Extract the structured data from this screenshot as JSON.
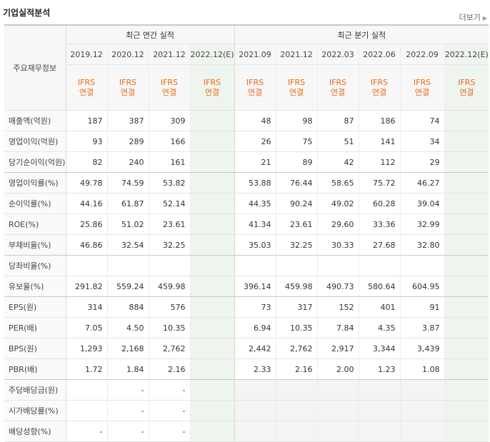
{
  "header": {
    "title": "기업실적분석",
    "more_label": "더보기"
  },
  "table": {
    "corner_label": "주요재무정보",
    "annual_group_label": "최근 연간 실적",
    "quarter_group_label": "최근 분기 실적",
    "periods": [
      "2019.12",
      "2020.12",
      "2021.12",
      "2022.12(E)",
      "2021.09",
      "2021.12",
      "2022.03",
      "2022.06",
      "2022.09",
      "2022.12(E)"
    ],
    "ifrs_top": "IFRS",
    "ifrs_bottom": "연결",
    "rows": [
      {
        "label": "매출액(억원)",
        "values": [
          "187",
          "387",
          "309",
          "",
          "48",
          "98",
          "87",
          "186",
          "74",
          ""
        ]
      },
      {
        "label": "영업이익(억원)",
        "values": [
          "93",
          "289",
          "166",
          "",
          "26",
          "75",
          "51",
          "141",
          "34",
          ""
        ]
      },
      {
        "label": "당기순이익(억원)",
        "values": [
          "82",
          "240",
          "161",
          "",
          "21",
          "89",
          "42",
          "112",
          "29",
          ""
        ]
      },
      {
        "label": "영업이익률(%)",
        "values": [
          "49.78",
          "74.59",
          "53.82",
          "",
          "53.88",
          "76.44",
          "58.65",
          "75.72",
          "46.27",
          ""
        ]
      },
      {
        "label": "순이익률(%)",
        "values": [
          "44.16",
          "61.87",
          "52.14",
          "",
          "44.35",
          "90.24",
          "49.02",
          "60.28",
          "39.04",
          ""
        ]
      },
      {
        "label": "ROE(%)",
        "values": [
          "25.86",
          "51.02",
          "23.61",
          "",
          "41.34",
          "23.61",
          "29.60",
          "33.36",
          "32.99",
          ""
        ]
      },
      {
        "label": "부채비율(%)",
        "values": [
          "46.86",
          "32.54",
          "32.25",
          "",
          "35.03",
          "32.25",
          "30.33",
          "27.68",
          "32.80",
          ""
        ]
      },
      {
        "label": "당좌비율(%)",
        "values": [
          "",
          "",
          "",
          "",
          "",
          "",
          "",
          "",
          "",
          ""
        ]
      },
      {
        "label": "유보율(%)",
        "values": [
          "291.82",
          "559.24",
          "459.98",
          "",
          "396.14",
          "459.98",
          "490.73",
          "580.64",
          "604.95",
          ""
        ]
      },
      {
        "label": "EPS(원)",
        "values": [
          "314",
          "884",
          "576",
          "",
          "73",
          "317",
          "152",
          "401",
          "91",
          ""
        ]
      },
      {
        "label": "PER(배)",
        "values": [
          "7.05",
          "4.50",
          "10.35",
          "",
          "6.94",
          "10.35",
          "7.84",
          "4.35",
          "3.87",
          ""
        ]
      },
      {
        "label": "BPS(원)",
        "values": [
          "1,293",
          "2,168",
          "2,762",
          "",
          "2,442",
          "2,762",
          "2,917",
          "3,344",
          "3,439",
          ""
        ]
      },
      {
        "label": "PBR(배)",
        "values": [
          "1.72",
          "1.84",
          "2.16",
          "",
          "2.33",
          "2.16",
          "2.00",
          "1.23",
          "1.08",
          ""
        ]
      },
      {
        "label": "주당배당금(원)",
        "values": [
          "",
          "-",
          "-",
          "",
          "",
          "",
          "",
          "",
          "",
          ""
        ]
      },
      {
        "label": "시가배당률(%)",
        "values": [
          "",
          "-",
          "-",
          "",
          "",
          "",
          "",
          "",
          "",
          ""
        ]
      },
      {
        "label": "배당성향(%)",
        "values": [
          "-",
          "-",
          "-",
          "",
          "",
          "",
          "",
          "",
          "",
          ""
        ]
      }
    ]
  }
}
